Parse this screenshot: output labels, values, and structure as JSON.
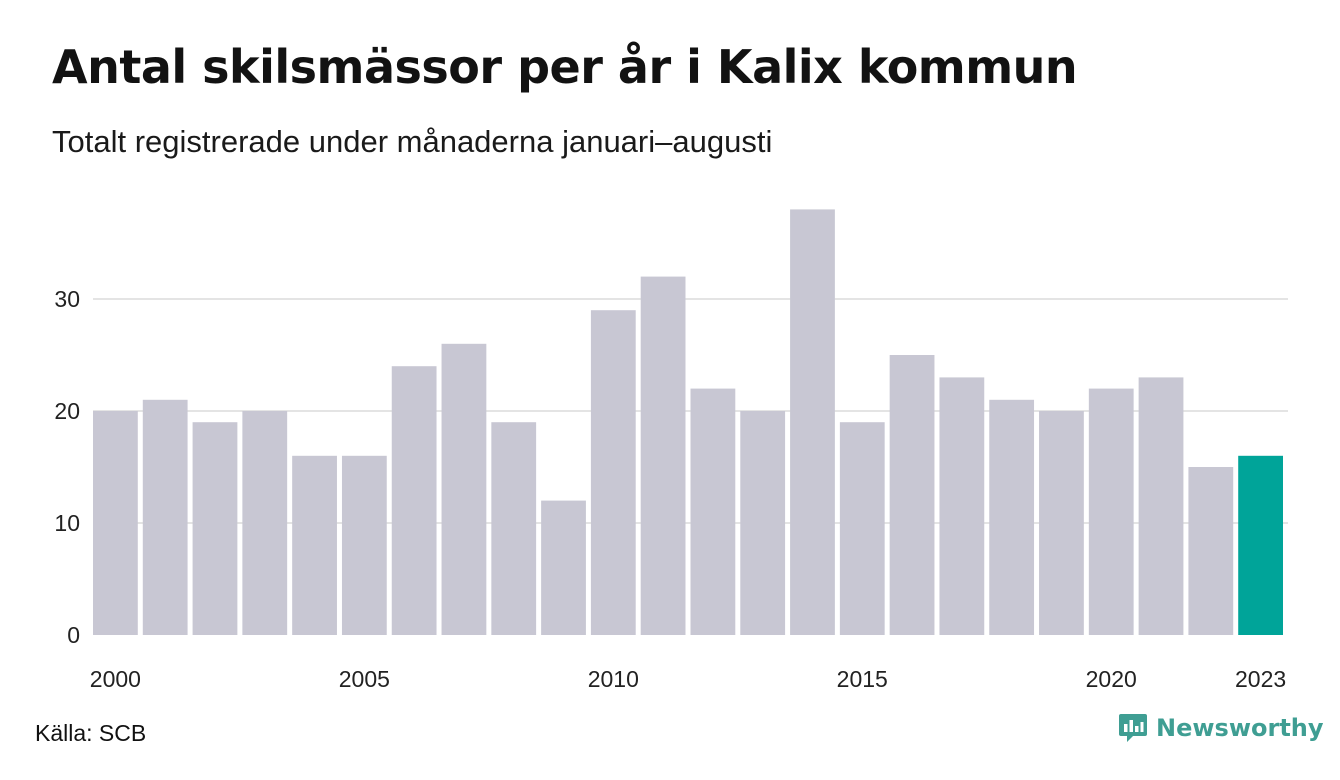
{
  "chart_data": {
    "type": "bar",
    "title": "Antal skilsmässor per år i Kalix kommun",
    "subtitle": "Totalt registrerade under månaderna januari–augusti",
    "categories": [
      "2000",
      "2001",
      "2002",
      "2003",
      "2004",
      "2005",
      "2006",
      "2007",
      "2008",
      "2009",
      "2010",
      "2011",
      "2012",
      "2013",
      "2014",
      "2015",
      "2016",
      "2017",
      "2018",
      "2019",
      "2020",
      "2021",
      "2022",
      "2023"
    ],
    "values": [
      20,
      21,
      19,
      20,
      16,
      16,
      24,
      26,
      19,
      12,
      29,
      32,
      22,
      20,
      38,
      19,
      25,
      23,
      21,
      20,
      22,
      23,
      15,
      16
    ],
    "x_tick_labels": [
      "2000",
      "2005",
      "2010",
      "2015",
      "2020",
      "2023"
    ],
    "y_ticks": [
      0,
      10,
      20,
      30
    ],
    "ylim": [
      0,
      39
    ],
    "grid": true,
    "xlabel": "",
    "ylabel": "",
    "colors": {
      "bar": "#c8c7d3",
      "highlight": "#00a499",
      "highlight_category": "2023",
      "grid": "#e4e4e4"
    }
  },
  "source": "Källa: SCB",
  "brand": {
    "name": "Newsworthy",
    "icon": "newsworthy-logo-icon",
    "color": "#3f9e93"
  }
}
